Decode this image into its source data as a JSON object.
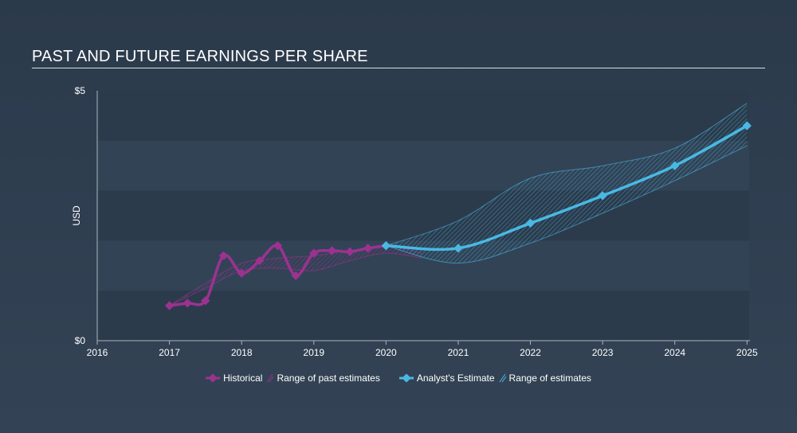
{
  "title": "PAST AND FUTURE EARNINGS PER SHARE",
  "colors": {
    "historical": "#9c3290",
    "estimate": "#49b9e4",
    "past_range": "#9c3290",
    "future_range": "#49b9e4"
  },
  "legend": {
    "historical": "Historical",
    "past_range": "Range of past estimates",
    "estimate": "Analyst's Estimate",
    "future_range": "Range of estimates"
  },
  "chart_data": {
    "type": "line",
    "title": "PAST AND FUTURE EARNINGS PER SHARE",
    "ylabel": "USD",
    "xlabel": "",
    "xlim": [
      2016,
      2025.03
    ],
    "ylim": [
      0,
      5
    ],
    "y_tick_labels": [
      {
        "value": 5,
        "label": "$5"
      },
      {
        "value": 0,
        "label": "$0"
      }
    ],
    "x_ticks": [
      2016,
      2017,
      2018,
      2019,
      2020,
      2021,
      2022,
      2023,
      2024,
      2025
    ],
    "grid": "horizontal bands",
    "legend_position": "bottom",
    "series": [
      {
        "name": "Historical",
        "points": [
          [
            2017.0,
            0.7
          ],
          [
            2017.25,
            0.75
          ],
          [
            2017.5,
            0.8
          ],
          [
            2017.75,
            1.7
          ],
          [
            2018.0,
            1.35
          ],
          [
            2018.25,
            1.6
          ],
          [
            2018.5,
            1.9
          ],
          [
            2018.75,
            1.3
          ],
          [
            2019.0,
            1.75
          ],
          [
            2019.25,
            1.8
          ],
          [
            2019.5,
            1.78
          ],
          [
            2019.75,
            1.85
          ],
          [
            2020.0,
            1.9
          ]
        ]
      },
      {
        "name": "Analyst's Estimate",
        "points": [
          [
            2020.0,
            1.9
          ],
          [
            2021.0,
            1.85
          ],
          [
            2022.0,
            2.35
          ],
          [
            2023.0,
            2.9
          ],
          [
            2024.0,
            3.5
          ],
          [
            2025.0,
            4.3
          ]
        ]
      }
    ],
    "past_range": {
      "name": "Range of past estimates",
      "upper": [
        [
          2017.0,
          0.7
        ],
        [
          2017.5,
          1.15
        ],
        [
          2018.0,
          1.55
        ],
        [
          2018.5,
          1.65
        ],
        [
          2019.0,
          1.7
        ],
        [
          2019.5,
          1.8
        ],
        [
          2020.0,
          1.9
        ],
        [
          2020.5,
          1.75
        ]
      ],
      "lower": [
        [
          2017.0,
          0.7
        ],
        [
          2017.5,
          1.05
        ],
        [
          2018.0,
          1.4
        ],
        [
          2018.5,
          1.45
        ],
        [
          2019.0,
          1.4
        ],
        [
          2019.5,
          1.6
        ],
        [
          2020.0,
          1.75
        ],
        [
          2020.5,
          1.65
        ]
      ]
    },
    "future_range": {
      "name": "Range of estimates",
      "upper": [
        [
          2020.0,
          1.9
        ],
        [
          2021.0,
          2.4
        ],
        [
          2022.0,
          3.25
        ],
        [
          2023.0,
          3.5
        ],
        [
          2024.0,
          3.85
        ],
        [
          2025.0,
          4.75
        ]
      ],
      "lower": [
        [
          2020.0,
          1.9
        ],
        [
          2021.0,
          1.55
        ],
        [
          2022.0,
          1.95
        ],
        [
          2023.0,
          2.55
        ],
        [
          2024.0,
          3.2
        ],
        [
          2025.0,
          3.9
        ]
      ]
    }
  }
}
